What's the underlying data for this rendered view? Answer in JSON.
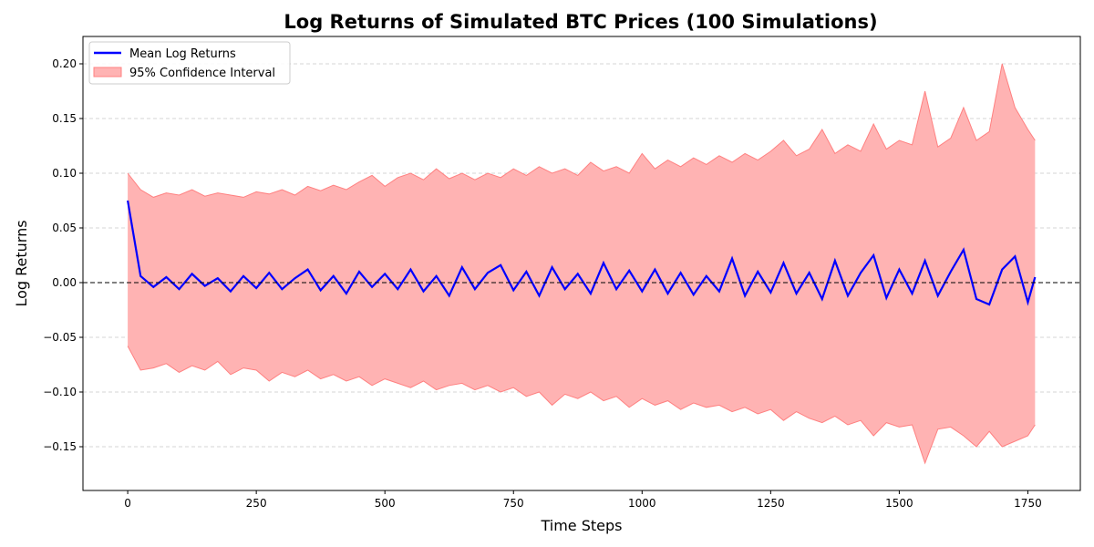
{
  "chart_data": {
    "type": "line",
    "title": "Log Returns of Simulated BTC Prices (100 Simulations)",
    "xlabel": "Time Steps",
    "ylabel": "Log Returns",
    "xlim": [
      -87,
      1852
    ],
    "ylim": [
      -0.19,
      0.225
    ],
    "xticks": [
      0,
      250,
      500,
      750,
      1000,
      1250,
      1500,
      1750
    ],
    "xtick_labels": [
      "0",
      "250",
      "500",
      "750",
      "1000",
      "1250",
      "1500",
      "1750"
    ],
    "yticks": [
      -0.15,
      -0.1,
      -0.05,
      0.0,
      0.05,
      0.1,
      0.15,
      0.2
    ],
    "ytick_labels": [
      "−0.15",
      "−0.10",
      "−0.05",
      "0.00",
      "0.05",
      "0.10",
      "0.15",
      "0.20"
    ],
    "grid": "horizontal dashed",
    "reference_line": 0,
    "legend": {
      "placement": "top-left",
      "entries": [
        "Mean Log Returns",
        "95% Confidence Interval"
      ]
    },
    "colors": {
      "mean": "#0000ff",
      "ci_fill": "#ffb3b3",
      "ci_edge": "#ff8080",
      "grid": "#c8c8c8"
    },
    "x": [
      0,
      25,
      50,
      75,
      100,
      125,
      150,
      175,
      200,
      225,
      250,
      275,
      300,
      325,
      350,
      375,
      400,
      425,
      450,
      475,
      500,
      525,
      550,
      575,
      600,
      625,
      650,
      675,
      700,
      725,
      750,
      775,
      800,
      825,
      850,
      875,
      900,
      925,
      950,
      975,
      1000,
      1025,
      1050,
      1075,
      1100,
      1125,
      1150,
      1175,
      1200,
      1225,
      1250,
      1275,
      1300,
      1325,
      1350,
      1375,
      1400,
      1425,
      1450,
      1475,
      1500,
      1525,
      1550,
      1575,
      1600,
      1625,
      1650,
      1675,
      1700,
      1725,
      1750,
      1764
    ],
    "series": [
      {
        "name": "Mean Log Returns",
        "values": [
          0.075,
          0.006,
          -0.004,
          0.005,
          -0.006,
          0.008,
          -0.003,
          0.004,
          -0.008,
          0.006,
          -0.005,
          0.009,
          -0.006,
          0.004,
          0.012,
          -0.007,
          0.006,
          -0.01,
          0.01,
          -0.004,
          0.008,
          -0.006,
          0.012,
          -0.008,
          0.006,
          -0.012,
          0.014,
          -0.006,
          0.009,
          0.016,
          -0.007,
          0.01,
          -0.012,
          0.014,
          -0.006,
          0.008,
          -0.01,
          0.018,
          -0.006,
          0.011,
          -0.008,
          0.012,
          -0.01,
          0.009,
          -0.011,
          0.006,
          -0.008,
          0.022,
          -0.012,
          0.01,
          -0.009,
          0.018,
          -0.01,
          0.009,
          -0.015,
          0.02,
          -0.012,
          0.009,
          0.025,
          -0.014,
          0.012,
          -0.01,
          0.02,
          -0.012,
          0.01,
          0.03,
          -0.015,
          -0.02,
          0.012,
          0.024,
          -0.018,
          0.005
        ]
      },
      {
        "name": "95% Confidence Interval upper",
        "values": [
          0.1,
          0.085,
          0.078,
          0.082,
          0.08,
          0.085,
          0.079,
          0.082,
          0.08,
          0.078,
          0.083,
          0.081,
          0.085,
          0.08,
          0.088,
          0.084,
          0.089,
          0.085,
          0.092,
          0.098,
          0.088,
          0.096,
          0.1,
          0.094,
          0.104,
          0.095,
          0.1,
          0.094,
          0.1,
          0.096,
          0.104,
          0.098,
          0.106,
          0.1,
          0.104,
          0.098,
          0.11,
          0.102,
          0.106,
          0.1,
          0.118,
          0.104,
          0.112,
          0.106,
          0.114,
          0.108,
          0.116,
          0.11,
          0.118,
          0.112,
          0.12,
          0.13,
          0.116,
          0.122,
          0.14,
          0.118,
          0.126,
          0.12,
          0.145,
          0.122,
          0.13,
          0.126,
          0.175,
          0.124,
          0.132,
          0.16,
          0.13,
          0.138,
          0.2,
          0.16,
          0.14,
          0.13
        ]
      },
      {
        "name": "95% Confidence Interval lower",
        "values": [
          -0.058,
          -0.08,
          -0.078,
          -0.074,
          -0.082,
          -0.076,
          -0.08,
          -0.072,
          -0.084,
          -0.078,
          -0.08,
          -0.09,
          -0.082,
          -0.086,
          -0.08,
          -0.088,
          -0.084,
          -0.09,
          -0.086,
          -0.094,
          -0.088,
          -0.092,
          -0.096,
          -0.09,
          -0.098,
          -0.094,
          -0.092,
          -0.098,
          -0.094,
          -0.1,
          -0.096,
          -0.104,
          -0.1,
          -0.112,
          -0.102,
          -0.106,
          -0.1,
          -0.108,
          -0.104,
          -0.114,
          -0.106,
          -0.112,
          -0.108,
          -0.116,
          -0.11,
          -0.114,
          -0.112,
          -0.118,
          -0.114,
          -0.12,
          -0.116,
          -0.126,
          -0.118,
          -0.124,
          -0.128,
          -0.122,
          -0.13,
          -0.126,
          -0.14,
          -0.128,
          -0.132,
          -0.13,
          -0.165,
          -0.134,
          -0.132,
          -0.14,
          -0.15,
          -0.136,
          -0.15,
          -0.145,
          -0.14,
          -0.13
        ]
      }
    ]
  }
}
